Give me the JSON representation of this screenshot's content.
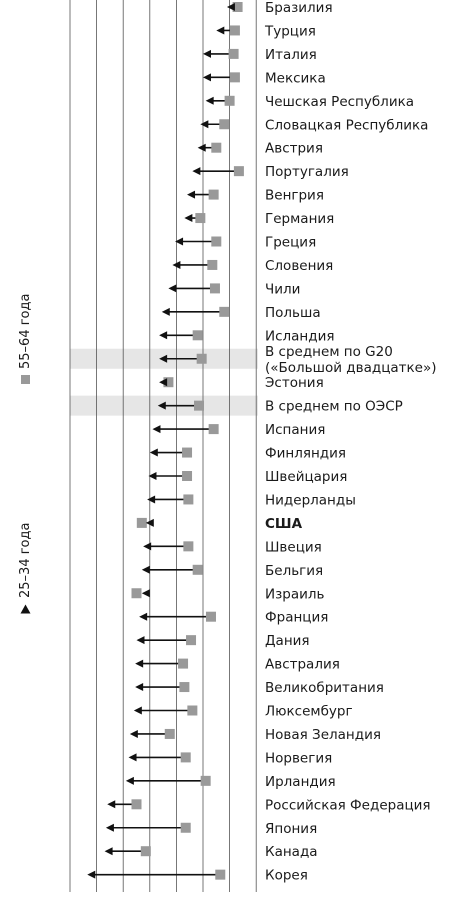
{
  "chart_data": {
    "type": "dot-arrow",
    "x_range": [
      0,
      100
    ],
    "gridlines": [
      10,
      20,
      30,
      40,
      50,
      60,
      70
    ],
    "series": [
      {
        "name": "55–64 года",
        "marker": "square",
        "color": "#999999"
      },
      {
        "name": "25–34 года",
        "marker": "triangle",
        "color": "#111111"
      }
    ],
    "highlight_color": "#e6e6e6",
    "rows": [
      {
        "country": "Бразилия",
        "age_55_64": 63,
        "age_25_34": 59
      },
      {
        "country": "Турция",
        "age_55_64": 62,
        "age_25_34": 55
      },
      {
        "country": "Италия",
        "age_55_64": 61.5,
        "age_25_34": 50
      },
      {
        "country": "Мексика",
        "age_55_64": 62,
        "age_25_34": 50
      },
      {
        "country": "Чешская Республика",
        "age_55_64": 60,
        "age_25_34": 51
      },
      {
        "country": "Словацкая Республика",
        "age_55_64": 58,
        "age_25_34": 49
      },
      {
        "country": "Австрия",
        "age_55_64": 55,
        "age_25_34": 48
      },
      {
        "country": "Португалия",
        "age_55_64": 63.5,
        "age_25_34": 46
      },
      {
        "country": "Венгрия",
        "age_55_64": 54,
        "age_25_34": 44
      },
      {
        "country": "Германия",
        "age_55_64": 49,
        "age_25_34": 43
      },
      {
        "country": "Греция",
        "age_55_64": 55,
        "age_25_34": 39.5
      },
      {
        "country": "Словения",
        "age_55_64": 53.5,
        "age_25_34": 38.5
      },
      {
        "country": "Чили",
        "age_55_64": 54.5,
        "age_25_34": 37
      },
      {
        "country": "Польша",
        "age_55_64": 58,
        "age_25_34": 34.5
      },
      {
        "country": "Исландия",
        "age_55_64": 48,
        "age_25_34": 33.5
      },
      {
        "country": "В среднем по G20 («Большой двадцатке»)",
        "country_lines": [
          "В среднем по G20",
          "(«Большой двадцатке»)"
        ],
        "age_55_64": 49.5,
        "age_25_34": 33.5,
        "highlight": true
      },
      {
        "country": "Эстония",
        "age_55_64": 37,
        "age_25_34": 33.5
      },
      {
        "country": "В среднем по ОЭСР",
        "age_55_64": 48.5,
        "age_25_34": 33,
        "highlight": true
      },
      {
        "country": "Испания",
        "age_55_64": 54,
        "age_25_34": 31
      },
      {
        "country": "Финляндия",
        "age_55_64": 44,
        "age_25_34": 30
      },
      {
        "country": "Швейцария",
        "age_55_64": 44,
        "age_25_34": 29.5
      },
      {
        "country": "Нидерланды",
        "age_55_64": 44.5,
        "age_25_34": 29
      },
      {
        "country": "США",
        "age_55_64": 27,
        "age_25_34": 28.5,
        "bold": true
      },
      {
        "country": "Швеция",
        "age_55_64": 44.5,
        "age_25_34": 27.5
      },
      {
        "country": "Бельгия",
        "age_55_64": 48,
        "age_25_34": 27
      },
      {
        "country": "Израиль",
        "age_55_64": 25,
        "age_25_34": 27
      },
      {
        "country": "Франция",
        "age_55_64": 53,
        "age_25_34": 26
      },
      {
        "country": "Дания",
        "age_55_64": 45.5,
        "age_25_34": 25
      },
      {
        "country": "Австралия",
        "age_55_64": 42.5,
        "age_25_34": 24.5
      },
      {
        "country": "Великобритания",
        "age_55_64": 43,
        "age_25_34": 24.5
      },
      {
        "country": "Люксембург",
        "age_55_64": 46,
        "age_25_34": 24
      },
      {
        "country": "Новая Зеландия",
        "age_55_64": 37.5,
        "age_25_34": 22.5
      },
      {
        "country": "Норвегия",
        "age_55_64": 43.5,
        "age_25_34": 22
      },
      {
        "country": "Ирландия",
        "age_55_64": 51,
        "age_25_34": 21
      },
      {
        "country": "Российская Федерация",
        "age_55_64": 25,
        "age_25_34": 14
      },
      {
        "country": "Япония",
        "age_55_64": 43.5,
        "age_25_34": 13.5
      },
      {
        "country": "Канада",
        "age_55_64": 28.5,
        "age_25_34": 13
      },
      {
        "country": "Корея",
        "age_55_64": 56.5,
        "age_25_34": 6.5
      }
    ]
  }
}
